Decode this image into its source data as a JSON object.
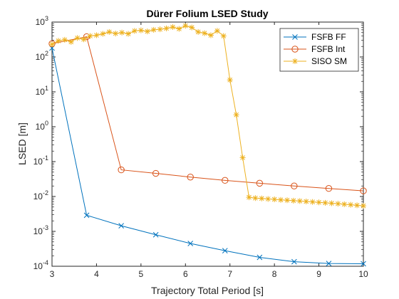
{
  "chart_data": {
    "type": "line",
    "title": "Dürer Folium LSED Study",
    "xlabel": "Trajectory Total Period [s]",
    "ylabel": "LSED [m]",
    "xlim": [
      3,
      10
    ],
    "ylim": [
      0.0001,
      1000
    ],
    "yscale": "log",
    "x_ticks": [
      3,
      4,
      5,
      6,
      7,
      8,
      9,
      10
    ],
    "x_tick_labels": [
      "3",
      "4",
      "5",
      "6",
      "7",
      "8",
      "9",
      "10"
    ],
    "y_ticks": [
      0.0001,
      0.001,
      0.01,
      0.1,
      1,
      10,
      100,
      1000
    ],
    "y_tick_labels": [
      {
        "base": "10",
        "exp": "-4"
      },
      {
        "base": "10",
        "exp": "-3"
      },
      {
        "base": "10",
        "exp": "-2"
      },
      {
        "base": "10",
        "exp": "-1"
      },
      {
        "base": "10",
        "exp": "0"
      },
      {
        "base": "10",
        "exp": "1"
      },
      {
        "base": "10",
        "exp": "2"
      },
      {
        "base": "10",
        "exp": "3"
      }
    ],
    "grid": false,
    "legend_position": "top-right",
    "series": [
      {
        "name": "FSFB FF",
        "color": "#0072BD",
        "marker": "x",
        "x": [
          3,
          3.778,
          4.556,
          5.333,
          6.111,
          6.889,
          7.667,
          8.444,
          9.222,
          10
        ],
        "y": [
          180,
          0.0029,
          0.00145,
          0.0008,
          0.00045,
          0.00028,
          0.00018,
          0.000135,
          0.00012,
          0.000118
        ]
      },
      {
        "name": "FSFB Int",
        "color": "#D95319",
        "marker": "o",
        "x": [
          3,
          3.778,
          4.556,
          5.333,
          6.111,
          6.889,
          7.667,
          8.444,
          9.222,
          10
        ],
        "y": [
          240,
          380,
          0.058,
          0.046,
          0.036,
          0.029,
          0.024,
          0.02,
          0.017,
          0.0145
        ]
      },
      {
        "name": "SISO SM",
        "color": "#EDB120",
        "marker": "*",
        "x": [
          3,
          3.143,
          3.286,
          3.429,
          3.571,
          3.714,
          3.857,
          4,
          4.143,
          4.286,
          4.429,
          4.571,
          4.714,
          4.857,
          5,
          5.143,
          5.286,
          5.429,
          5.571,
          5.714,
          5.857,
          6,
          6.143,
          6.286,
          6.429,
          6.571,
          6.714,
          6.857,
          7,
          7.143,
          7.286,
          7.429,
          7.571,
          7.714,
          7.857,
          8,
          8.143,
          8.286,
          8.429,
          8.571,
          8.714,
          8.857,
          9,
          9.143,
          9.286,
          9.429,
          9.571,
          9.714,
          9.857,
          10
        ],
        "y": [
          230,
          290,
          310,
          270,
          350,
          320,
          400,
          420,
          460,
          520,
          470,
          500,
          460,
          560,
          580,
          540,
          600,
          620,
          660,
          720,
          640,
          780,
          700,
          520,
          480,
          420,
          560,
          400,
          22,
          2.2,
          0.13,
          0.0095,
          0.009,
          0.0088,
          0.0085,
          0.0083,
          0.008,
          0.0078,
          0.0076,
          0.0074,
          0.0072,
          0.007,
          0.0068,
          0.0066,
          0.0064,
          0.0062,
          0.006,
          0.0058,
          0.0056,
          0.0054
        ]
      }
    ]
  }
}
